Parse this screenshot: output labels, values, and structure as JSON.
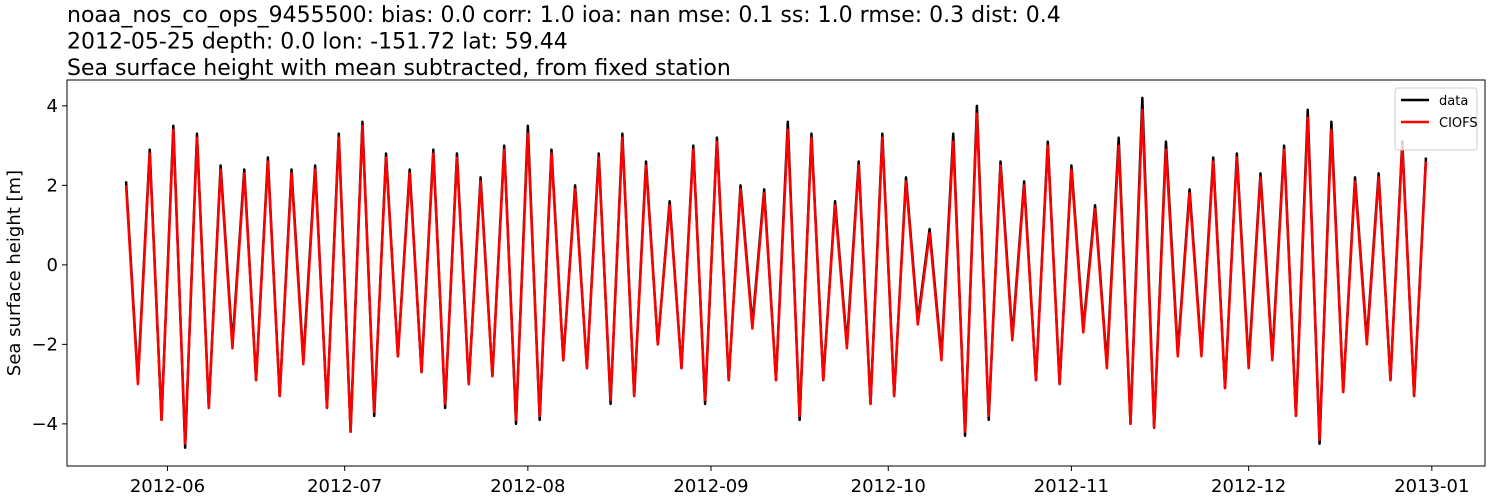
{
  "chart_data": {
    "type": "line",
    "title": [
      "noaa_nos_co_ops_9455500: bias: 0.0  corr: 1.0  ioa: nan  mse: 0.1  ss: 1.0  rmse: 0.3  dist: 0.4",
      "2012-05-25 depth: 0.0 lon: -151.72 lat: 59.44",
      "Sea surface height with mean subtracted, from fixed station"
    ],
    "y_label": "Sea surface height [m]",
    "x": [
      "2012-05-25",
      "2012-05-27",
      "2012-05-29",
      "2012-05-31",
      "2012-06-02",
      "2012-06-04",
      "2012-06-06",
      "2012-06-08",
      "2012-06-10",
      "2012-06-12",
      "2012-06-14",
      "2012-06-16",
      "2012-06-18",
      "2012-06-20",
      "2012-06-22",
      "2012-06-24",
      "2012-06-26",
      "2012-06-28",
      "2012-06-30",
      "2012-07-02",
      "2012-07-04",
      "2012-07-06",
      "2012-07-08",
      "2012-07-10",
      "2012-07-12",
      "2012-07-14",
      "2012-07-16",
      "2012-07-18",
      "2012-07-20",
      "2012-07-22",
      "2012-07-24",
      "2012-07-26",
      "2012-07-28",
      "2012-07-30",
      "2012-08-01",
      "2012-08-03",
      "2012-08-05",
      "2012-08-07",
      "2012-08-09",
      "2012-08-11",
      "2012-08-13",
      "2012-08-15",
      "2012-08-17",
      "2012-08-19",
      "2012-08-21",
      "2012-08-23",
      "2012-08-25",
      "2012-08-27",
      "2012-08-29",
      "2012-08-31",
      "2012-09-02",
      "2012-09-04",
      "2012-09-06",
      "2012-09-08",
      "2012-09-10",
      "2012-09-12",
      "2012-09-14",
      "2012-09-16",
      "2012-09-18",
      "2012-09-20",
      "2012-09-22",
      "2012-09-24",
      "2012-09-26",
      "2012-09-28",
      "2012-09-30",
      "2012-10-02",
      "2012-10-04",
      "2012-10-06",
      "2012-10-08",
      "2012-10-10",
      "2012-10-12",
      "2012-10-14",
      "2012-10-16",
      "2012-10-18",
      "2012-10-20",
      "2012-10-22",
      "2012-10-24",
      "2012-10-26",
      "2012-10-28",
      "2012-10-30",
      "2012-11-01",
      "2012-11-03",
      "2012-11-05",
      "2012-11-07",
      "2012-11-09",
      "2012-11-11",
      "2012-11-13",
      "2012-11-15",
      "2012-11-17",
      "2012-11-19",
      "2012-11-21",
      "2012-11-23",
      "2012-11-25",
      "2012-11-27",
      "2012-11-29",
      "2012-12-01",
      "2012-12-03",
      "2012-12-05",
      "2012-12-07",
      "2012-12-09",
      "2012-12-11",
      "2012-12-13",
      "2012-12-15",
      "2012-12-17",
      "2012-12-19",
      "2012-12-21",
      "2012-12-23",
      "2012-12-25",
      "2012-12-27",
      "2012-12-29",
      "2012-12-31"
    ],
    "series": [
      {
        "name": "data",
        "color": "#000000",
        "values": [
          2.1,
          -2.9,
          2.9,
          -3.9,
          3.5,
          -4.6,
          3.3,
          -3.6,
          2.5,
          -2.0,
          2.4,
          -2.9,
          2.7,
          -3.3,
          2.4,
          -2.4,
          2.5,
          -3.6,
          3.3,
          -4.2,
          3.6,
          -3.8,
          2.8,
          -2.3,
          2.4,
          -2.7,
          2.9,
          -3.6,
          2.8,
          -3.0,
          2.2,
          -2.8,
          3.0,
          -4.0,
          3.5,
          -3.9,
          2.9,
          -2.4,
          2.0,
          -2.6,
          2.8,
          -3.5,
          3.3,
          -3.3,
          2.6,
          -2.0,
          1.6,
          -2.6,
          3.0,
          -3.5,
          3.2,
          -2.9,
          2.0,
          -1.5,
          1.9,
          -2.9,
          3.6,
          -3.9,
          3.3,
          -2.9,
          1.6,
          -2.0,
          2.6,
          -3.5,
          3.3,
          -3.3,
          2.2,
          -1.4,
          0.9,
          -2.3,
          3.3,
          -4.3,
          4.0,
          -3.9,
          2.6,
          -1.8,
          2.1,
          -2.9,
          3.1,
          -3.0,
          2.5,
          -1.6,
          1.5,
          -2.5,
          3.2,
          -4.0,
          4.2,
          -4.1,
          3.1,
          -2.2,
          1.9,
          -2.2,
          2.7,
          -3.1,
          2.8,
          -2.5,
          2.3,
          -2.3,
          3.0,
          -3.8,
          3.9,
          -4.5,
          3.6,
          -3.2,
          2.2,
          -1.9,
          2.3,
          -2.9,
          3.1,
          -3.3,
          2.7
        ]
      },
      {
        "name": "CIOFS",
        "color": "#ff0000",
        "values": [
          2.0,
          -3.0,
          2.8,
          -3.9,
          3.4,
          -4.5,
          3.2,
          -3.6,
          2.4,
          -2.1,
          2.3,
          -2.9,
          2.6,
          -3.3,
          2.3,
          -2.5,
          2.4,
          -3.6,
          3.2,
          -4.2,
          3.5,
          -3.7,
          2.7,
          -2.3,
          2.3,
          -2.7,
          2.8,
          -3.5,
          2.7,
          -3.0,
          2.1,
          -2.8,
          2.9,
          -3.9,
          3.3,
          -3.8,
          2.8,
          -2.4,
          1.9,
          -2.6,
          2.7,
          -3.4,
          3.2,
          -3.3,
          2.5,
          -2.0,
          1.5,
          -2.6,
          2.9,
          -3.4,
          3.1,
          -2.9,
          1.9,
          -1.6,
          1.8,
          -2.9,
          3.4,
          -3.8,
          3.2,
          -2.9,
          1.5,
          -2.1,
          2.5,
          -3.5,
          3.2,
          -3.3,
          2.1,
          -1.5,
          0.8,
          -2.4,
          3.1,
          -4.2,
          3.8,
          -3.8,
          2.5,
          -1.9,
          2.0,
          -2.9,
          3.0,
          -3.0,
          2.4,
          -1.7,
          1.4,
          -2.6,
          3.0,
          -4.0,
          3.9,
          -4.1,
          2.9,
          -2.3,
          1.8,
          -2.3,
          2.6,
          -3.1,
          2.7,
          -2.6,
          2.2,
          -2.4,
          2.9,
          -3.8,
          3.7,
          -4.4,
          3.4,
          -3.2,
          2.1,
          -2.0,
          2.2,
          -2.9,
          3.0,
          -3.3,
          2.6
        ]
      }
    ],
    "xlim": [
      "2012-05-15",
      "2013-01-10"
    ],
    "xticks": [
      {
        "value": "2012-06-01",
        "label": "2012-06"
      },
      {
        "value": "2012-07-01",
        "label": "2012-07"
      },
      {
        "value": "2012-08-01",
        "label": "2012-08"
      },
      {
        "value": "2012-09-01",
        "label": "2012-09"
      },
      {
        "value": "2012-10-01",
        "label": "2012-10"
      },
      {
        "value": "2012-11-01",
        "label": "2012-11"
      },
      {
        "value": "2012-12-01",
        "label": "2012-12"
      },
      {
        "value": "2013-01-01",
        "label": "2013-01"
      }
    ],
    "ylim": [
      -5.06,
      4.65
    ],
    "yticks": [
      {
        "value": -4,
        "label": "−4"
      },
      {
        "value": -2,
        "label": "−2"
      },
      0,
      2,
      4
    ],
    "grid": false,
    "legend": "upper right"
  }
}
